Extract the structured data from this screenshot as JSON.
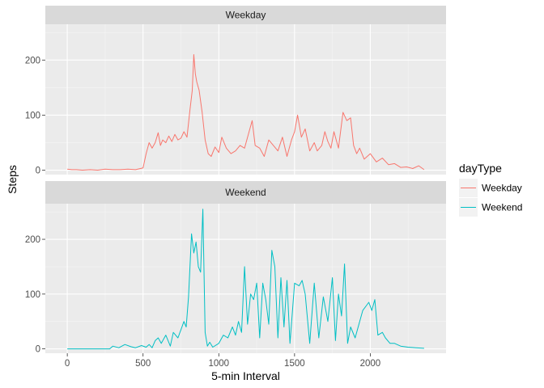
{
  "chart_data": {
    "type": "line",
    "facets": [
      "Weekday",
      "Weekend"
    ],
    "xlabel": "5-min Interval",
    "ylabel": "Steps",
    "xlim": [
      -145,
      2500
    ],
    "ylim": [
      -8,
      265
    ],
    "xticks": [
      0,
      500,
      1000,
      1500,
      2000
    ],
    "yticks": [
      0,
      100,
      200
    ],
    "legend": {
      "title": "dayType",
      "position": "right",
      "entries": [
        "Weekday",
        "Weekend"
      ]
    },
    "colors": {
      "Weekday": "#F8766D",
      "Weekend": "#00BFC4"
    },
    "series": [
      {
        "name": "Weekday",
        "facet": "Weekday",
        "x": [
          0,
          30,
          60,
          100,
          150,
          200,
          250,
          300,
          350,
          400,
          450,
          500,
          520,
          540,
          560,
          580,
          600,
          615,
          630,
          650,
          670,
          690,
          710,
          730,
          750,
          770,
          790,
          810,
          825,
          835,
          845,
          855,
          870,
          890,
          910,
          930,
          950,
          975,
          1000,
          1020,
          1050,
          1080,
          1110,
          1140,
          1170,
          1200,
          1220,
          1240,
          1270,
          1300,
          1330,
          1360,
          1390,
          1420,
          1450,
          1480,
          1500,
          1520,
          1545,
          1570,
          1600,
          1630,
          1650,
          1680,
          1700,
          1720,
          1740,
          1760,
          1790,
          1820,
          1845,
          1870,
          1890,
          1910,
          1930,
          1960,
          2000,
          2040,
          2080,
          2120,
          2160,
          2200,
          2240,
          2280,
          2320,
          2355
        ],
        "y": [
          2,
          1,
          1,
          0,
          1,
          0,
          2,
          1,
          1,
          2,
          1,
          4,
          30,
          50,
          40,
          50,
          68,
          45,
          55,
          50,
          62,
          52,
          65,
          55,
          58,
          70,
          60,
          110,
          145,
          210,
          175,
          160,
          145,
          105,
          55,
          30,
          25,
          42,
          32,
          60,
          40,
          30,
          35,
          45,
          40,
          70,
          90,
          45,
          40,
          25,
          55,
          45,
          35,
          60,
          25,
          55,
          70,
          100,
          60,
          75,
          35,
          50,
          35,
          45,
          70,
          52,
          40,
          70,
          40,
          105,
          90,
          95,
          45,
          30,
          40,
          20,
          30,
          15,
          22,
          10,
          12,
          5,
          6,
          3,
          8,
          1
        ]
      },
      {
        "name": "Weekend",
        "facet": "Weekend",
        "x": [
          0,
          100,
          200,
          280,
          300,
          340,
          380,
          420,
          450,
          490,
          520,
          540,
          560,
          580,
          600,
          620,
          650,
          680,
          700,
          730,
          750,
          770,
          785,
          800,
          820,
          835,
          850,
          865,
          880,
          895,
          910,
          925,
          940,
          960,
          1000,
          1030,
          1060,
          1090,
          1110,
          1130,
          1150,
          1170,
          1190,
          1210,
          1230,
          1250,
          1270,
          1290,
          1310,
          1330,
          1350,
          1370,
          1390,
          1410,
          1430,
          1450,
          1470,
          1500,
          1530,
          1550,
          1570,
          1600,
          1630,
          1660,
          1690,
          1720,
          1750,
          1770,
          1790,
          1810,
          1830,
          1850,
          1870,
          1900,
          1950,
          1990,
          2010,
          2030,
          2050,
          2080,
          2100,
          2130,
          2160,
          2200,
          2250,
          2300,
          2355
        ],
        "y": [
          0,
          0,
          0,
          0,
          5,
          2,
          8,
          4,
          2,
          6,
          3,
          8,
          2,
          15,
          20,
          10,
          25,
          5,
          30,
          20,
          35,
          50,
          40,
          95,
          210,
          175,
          195,
          150,
          140,
          255,
          30,
          5,
          12,
          3,
          10,
          25,
          20,
          40,
          25,
          50,
          30,
          150,
          45,
          100,
          90,
          120,
          20,
          120,
          90,
          45,
          180,
          150,
          20,
          130,
          40,
          125,
          10,
          120,
          115,
          125,
          100,
          10,
          120,
          20,
          95,
          50,
          130,
          15,
          100,
          60,
          155,
          10,
          40,
          20,
          70,
          85,
          70,
          90,
          25,
          30,
          20,
          10,
          10,
          5,
          3,
          2,
          1
        ]
      }
    ]
  }
}
